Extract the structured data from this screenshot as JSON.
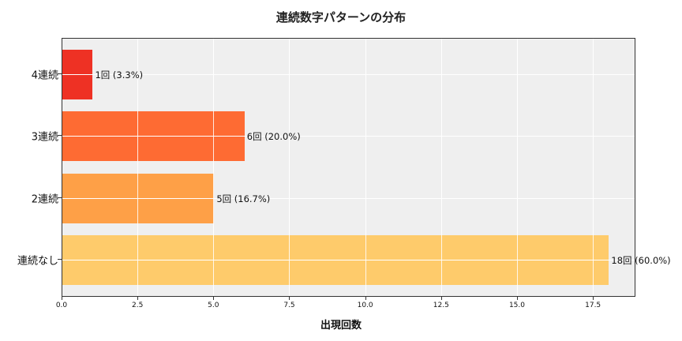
{
  "chart_data": {
    "type": "bar",
    "orientation": "horizontal",
    "title": "連続数字パターンの分布",
    "xlabel": "出現回数",
    "ylabel": "",
    "categories": [
      "4連続",
      "3連続",
      "2連続",
      "連続なし"
    ],
    "values": [
      1,
      6,
      5,
      18
    ],
    "percentages": [
      3.3,
      20.0,
      16.7,
      60.0
    ],
    "data_labels": [
      "1回 (3.3%)",
      "6回 (20.0%)",
      "5回 (16.7%)",
      "18回 (60.0%)"
    ],
    "colors": [
      "#ee3124",
      "#fe6b33",
      "#fea047",
      "#fecb6b"
    ],
    "xlim": [
      0,
      18.9
    ],
    "xticks": [
      "0.0",
      "2.5",
      "5.0",
      "7.5",
      "10.0",
      "12.5",
      "15.0",
      "17.5"
    ],
    "grid": true,
    "background": "#efefef",
    "legend": null
  }
}
